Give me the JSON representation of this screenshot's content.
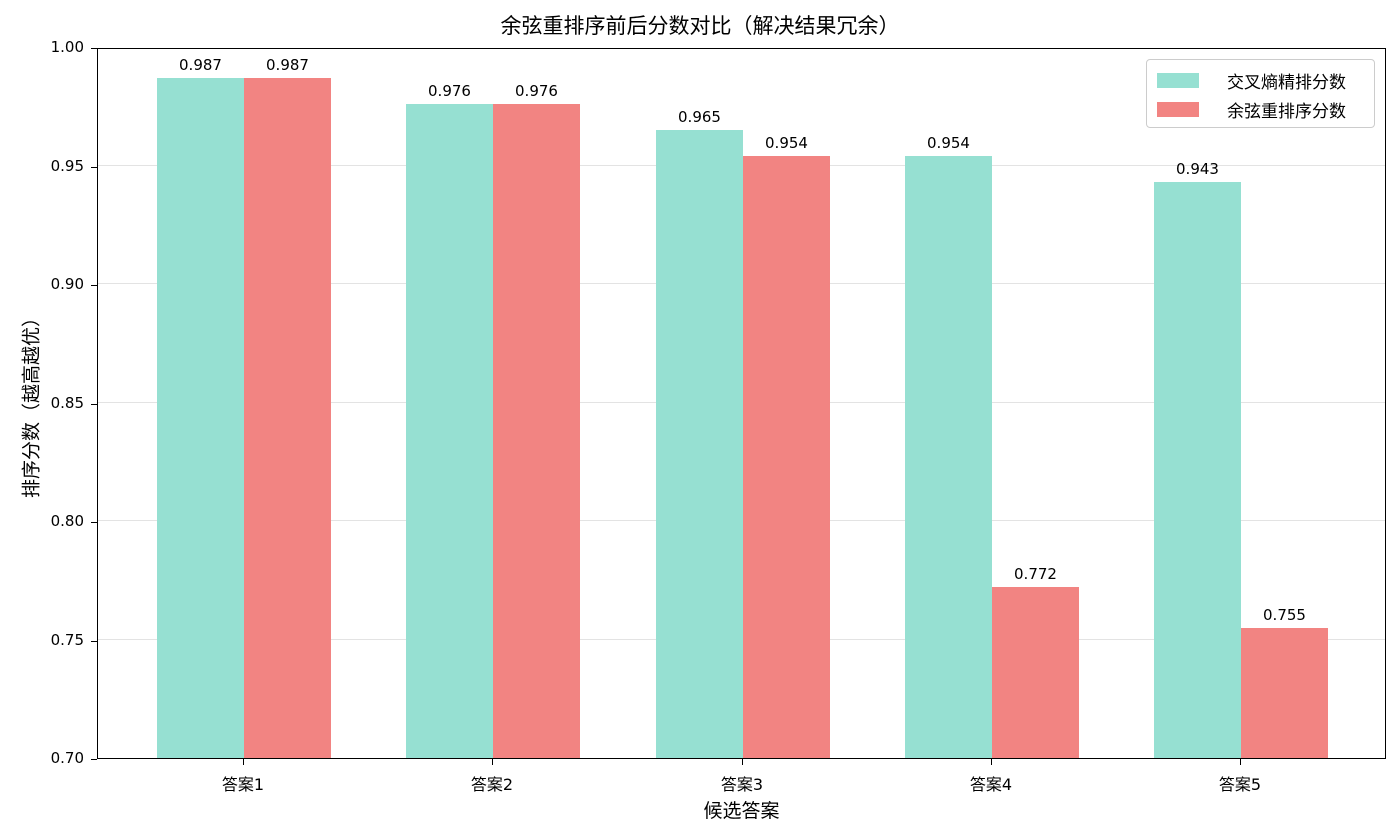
{
  "chart_data": {
    "type": "bar",
    "title": "余弦重排序前后分数对比（解决结果冗余）",
    "xlabel": "候选答案",
    "ylabel": "排序分数（越高越优）",
    "categories": [
      "答案1",
      "答案2",
      "答案3",
      "答案4",
      "答案5"
    ],
    "series": [
      {
        "name": "交叉熵精排分数",
        "color": "#96e0d2",
        "values": [
          0.987,
          0.976,
          0.965,
          0.954,
          0.943
        ]
      },
      {
        "name": "余弦重排序分数",
        "color": "#f28482",
        "values": [
          0.987,
          0.976,
          0.954,
          0.772,
          0.755
        ]
      }
    ],
    "value_labels": {
      "series0": [
        "0.987",
        "0.976",
        "0.965",
        "0.954",
        "0.943"
      ],
      "series1": [
        "0.987",
        "0.976",
        "0.954",
        "0.772",
        "0.755"
      ]
    },
    "ylim": [
      0.7,
      1.0
    ],
    "yticks": [
      "0.70",
      "0.75",
      "0.80",
      "0.85",
      "0.90",
      "0.95",
      "1.00"
    ],
    "grid": "y",
    "legend_position": "upper right"
  }
}
